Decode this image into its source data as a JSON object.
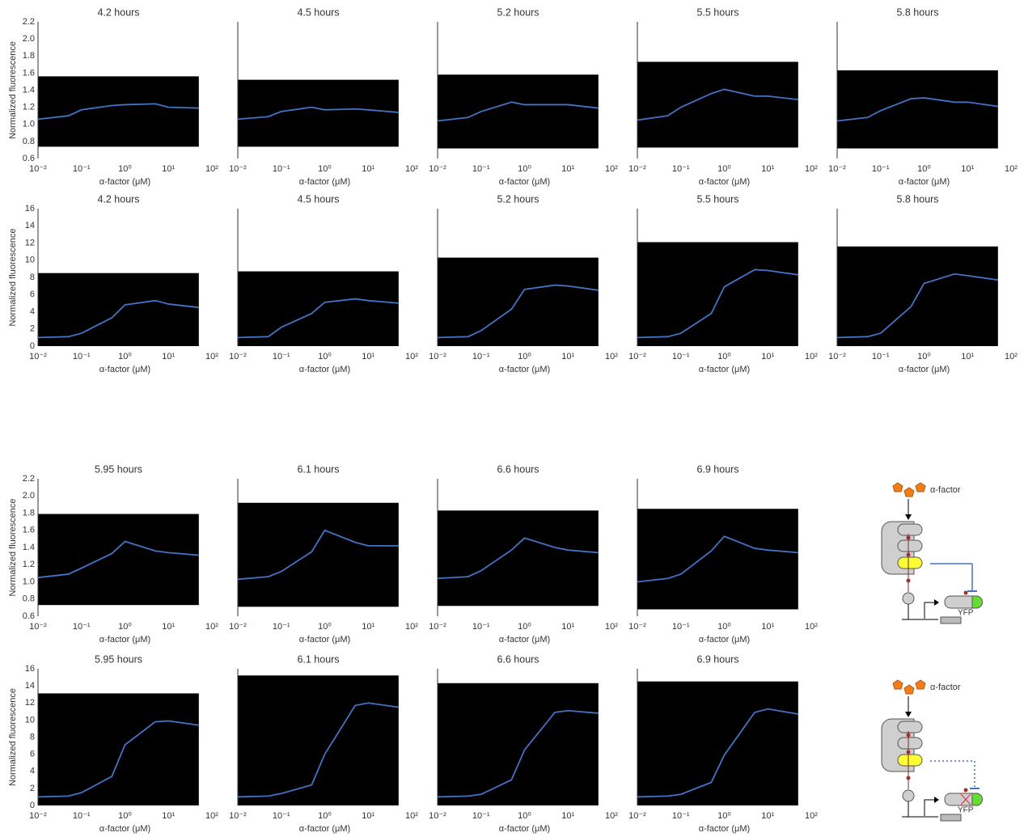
{
  "chart_data": [
    {
      "type": "line",
      "title": "4.2 hours",
      "ylabel": "Normalized fluorescence",
      "xlabel": "α-factor (μM)",
      "log_x": true,
      "x": [
        0.01,
        0.05,
        0.1,
        0.5,
        1,
        5,
        10,
        50
      ],
      "series": [
        {
          "color": "#4472c4",
          "values": [
            1.06,
            1.1,
            1.17,
            1.22,
            1.23,
            1.24,
            1.2,
            1.19
          ]
        }
      ],
      "xlim": [
        0.01,
        100
      ],
      "xticks": [
        {
          "value": 0.01,
          "label": "10⁻²"
        },
        {
          "value": 0.1,
          "label": "10⁻¹"
        },
        {
          "value": 1,
          "label": "10⁰"
        },
        {
          "value": 10,
          "label": "10¹"
        },
        {
          "value": 100,
          "label": "10²"
        }
      ],
      "ylim": [
        0.6,
        2.2
      ],
      "yticks": [
        0.6,
        0.8,
        {
          "value": 1,
          "label": "1.0"
        },
        1.2,
        1.4,
        1.6,
        1.8,
        {
          "value": 2,
          "label": "2.0"
        },
        2.2
      ]
    },
    {
      "type": "line",
      "title": "4.5 hours",
      "xlabel": "α-factor (μM)",
      "log_x": true,
      "x": [
        0.01,
        0.05,
        0.1,
        0.5,
        1,
        5,
        10,
        50
      ],
      "series": [
        {
          "color": "#4472c4",
          "values": [
            1.06,
            1.09,
            1.15,
            1.2,
            1.17,
            1.18,
            1.17,
            1.14
          ]
        }
      ],
      "xlim": [
        0.01,
        100
      ],
      "xticks": [
        {
          "value": 0.01,
          "label": "10⁻²"
        },
        {
          "value": 0.1,
          "label": "10⁻¹"
        },
        {
          "value": 1,
          "label": "10⁰"
        },
        {
          "value": 10,
          "label": "10¹"
        },
        {
          "value": 100,
          "label": "10²"
        }
      ],
      "ylim": [
        0.6,
        2.2
      ]
    },
    {
      "type": "line",
      "title": "5.2 hours",
      "xlabel": "α-factor (μM)",
      "log_x": true,
      "x": [
        0.01,
        0.05,
        0.1,
        0.5,
        1,
        5,
        10,
        50
      ],
      "series": [
        {
          "color": "#4472c4",
          "values": [
            1.04,
            1.08,
            1.15,
            1.26,
            1.23,
            1.23,
            1.23,
            1.19
          ]
        }
      ],
      "xlim": [
        0.01,
        100
      ],
      "xticks": [
        {
          "value": 0.01,
          "label": "10⁻²"
        },
        {
          "value": 0.1,
          "label": "10⁻¹"
        },
        {
          "value": 1,
          "label": "10⁰"
        },
        {
          "value": 10,
          "label": "10¹"
        },
        {
          "value": 100,
          "label": "10²"
        }
      ],
      "ylim": [
        0.6,
        2.2
      ]
    },
    {
      "type": "line",
      "title": "5.5 hours",
      "xlabel": "α-factor (μM)",
      "log_x": true,
      "x": [
        0.01,
        0.05,
        0.1,
        0.5,
        1,
        5,
        10,
        50
      ],
      "series": [
        {
          "color": "#4472c4",
          "values": [
            1.05,
            1.1,
            1.2,
            1.36,
            1.41,
            1.33,
            1.33,
            1.29
          ]
        }
      ],
      "xlim": [
        0.01,
        100
      ],
      "xticks": [
        {
          "value": 0.01,
          "label": "10⁻²"
        },
        {
          "value": 0.1,
          "label": "10⁻¹"
        },
        {
          "value": 1,
          "label": "10⁰"
        },
        {
          "value": 10,
          "label": "10¹"
        },
        {
          "value": 100,
          "label": "10²"
        }
      ],
      "ylim": [
        0.6,
        2.2
      ]
    },
    {
      "type": "line",
      "title": "5.8 hours",
      "xlabel": "α-factor (μM)",
      "log_x": true,
      "x": [
        0.01,
        0.05,
        0.1,
        0.5,
        1,
        5,
        10,
        50
      ],
      "series": [
        {
          "color": "#4472c4",
          "values": [
            1.04,
            1.08,
            1.16,
            1.3,
            1.31,
            1.26,
            1.26,
            1.21
          ]
        }
      ],
      "xlim": [
        0.01,
        100
      ],
      "xticks": [
        {
          "value": 0.01,
          "label": "10⁻²"
        },
        {
          "value": 0.1,
          "label": "10⁻¹"
        },
        {
          "value": 1,
          "label": "10⁰"
        },
        {
          "value": 10,
          "label": "10¹"
        },
        {
          "value": 100,
          "label": "10²"
        }
      ],
      "ylim": [
        0.6,
        2.2
      ]
    },
    {
      "type": "line",
      "title": "4.2 hours",
      "ylabel": "Normalized fluorescence",
      "xlabel": "α-factor (μM)",
      "log_x": true,
      "x": [
        0.01,
        0.05,
        0.1,
        0.5,
        1,
        5,
        10,
        50
      ],
      "series": [
        {
          "color": "#4472c4",
          "values": [
            1.0,
            1.1,
            1.5,
            3.3,
            4.8,
            5.3,
            4.9,
            4.5
          ]
        }
      ],
      "xlim": [
        0.01,
        100
      ],
      "xticks": [
        {
          "value": 0.01,
          "label": "10⁻²"
        },
        {
          "value": 0.1,
          "label": "10⁻¹"
        },
        {
          "value": 1,
          "label": "10⁰"
        },
        {
          "value": 10,
          "label": "10¹"
        },
        {
          "value": 100,
          "label": "10²"
        }
      ],
      "ylim": [
        0,
        16
      ],
      "yticks": [
        0,
        2,
        4,
        6,
        8,
        10,
        12,
        14,
        16
      ]
    },
    {
      "type": "line",
      "title": "4.5 hours",
      "xlabel": "α-factor (μM)",
      "log_x": true,
      "x": [
        0.01,
        0.05,
        0.1,
        0.5,
        1,
        5,
        10,
        50
      ],
      "series": [
        {
          "color": "#4472c4",
          "values": [
            1.0,
            1.1,
            2.2,
            3.8,
            5.1,
            5.5,
            5.3,
            5.0
          ]
        }
      ],
      "xlim": [
        0.01,
        100
      ],
      "xticks": [
        {
          "value": 0.01,
          "label": "10⁻²"
        },
        {
          "value": 0.1,
          "label": "10⁻¹"
        },
        {
          "value": 1,
          "label": "10⁰"
        },
        {
          "value": 10,
          "label": "10¹"
        },
        {
          "value": 100,
          "label": "10²"
        }
      ],
      "ylim": [
        0,
        16
      ]
    },
    {
      "type": "line",
      "title": "5.2 hours",
      "xlabel": "α-factor (μM)",
      "log_x": true,
      "x": [
        0.01,
        0.05,
        0.1,
        0.5,
        1,
        5,
        10,
        50
      ],
      "series": [
        {
          "color": "#4472c4",
          "values": [
            1.0,
            1.1,
            1.8,
            4.3,
            6.6,
            7.1,
            7.0,
            6.5
          ]
        }
      ],
      "xlim": [
        0.01,
        100
      ],
      "xticks": [
        {
          "value": 0.01,
          "label": "10⁻²"
        },
        {
          "value": 0.1,
          "label": "10⁻¹"
        },
        {
          "value": 1,
          "label": "10⁰"
        },
        {
          "value": 10,
          "label": "10¹"
        },
        {
          "value": 100,
          "label": "10²"
        }
      ],
      "ylim": [
        0,
        16
      ]
    },
    {
      "type": "line",
      "title": "5.5 hours",
      "xlabel": "α-factor (μM)",
      "log_x": true,
      "x": [
        0.01,
        0.05,
        0.1,
        0.5,
        1,
        5,
        10,
        50
      ],
      "series": [
        {
          "color": "#4472c4",
          "values": [
            1.0,
            1.1,
            1.5,
            3.8,
            6.9,
            8.9,
            8.8,
            8.3
          ]
        }
      ],
      "xlim": [
        0.01,
        100
      ],
      "xticks": [
        {
          "value": 0.01,
          "label": "10⁻²"
        },
        {
          "value": 0.1,
          "label": "10⁻¹"
        },
        {
          "value": 1,
          "label": "10⁰"
        },
        {
          "value": 10,
          "label": "10¹"
        },
        {
          "value": 100,
          "label": "10²"
        }
      ],
      "ylim": [
        0,
        16
      ]
    },
    {
      "type": "line",
      "title": "5.8 hours",
      "xlabel": "α-factor (μM)",
      "log_x": true,
      "x": [
        0.01,
        0.05,
        0.1,
        0.5,
        1,
        5,
        10,
        50
      ],
      "series": [
        {
          "color": "#4472c4",
          "values": [
            1.0,
            1.1,
            1.5,
            4.6,
            7.3,
            8.4,
            8.2,
            7.7
          ]
        }
      ],
      "xlim": [
        0.01,
        100
      ],
      "xticks": [
        {
          "value": 0.01,
          "label": "10⁻²"
        },
        {
          "value": 0.1,
          "label": "10⁻¹"
        },
        {
          "value": 1,
          "label": "10⁰"
        },
        {
          "value": 10,
          "label": "10¹"
        },
        {
          "value": 100,
          "label": "10²"
        }
      ],
      "ylim": [
        0,
        16
      ]
    },
    {
      "type": "line",
      "title": "5.95 hours",
      "ylabel": "Normalized fluorescence",
      "xlabel": "α-factor (μM)",
      "log_x": true,
      "x": [
        0.01,
        0.05,
        0.1,
        0.5,
        1,
        5,
        10,
        50
      ],
      "series": [
        {
          "color": "#4472c4",
          "values": [
            1.05,
            1.09,
            1.16,
            1.33,
            1.47,
            1.36,
            1.34,
            1.31
          ]
        }
      ],
      "xlim": [
        0.01,
        100
      ],
      "xticks": [
        {
          "value": 0.01,
          "label": "10⁻²"
        },
        {
          "value": 0.1,
          "label": "10⁻¹"
        },
        {
          "value": 1,
          "label": "10⁰"
        },
        {
          "value": 10,
          "label": "10¹"
        },
        {
          "value": 100,
          "label": "10²"
        }
      ],
      "ylim": [
        0.6,
        2.2
      ],
      "yticks": [
        0.6,
        0.8,
        {
          "value": 1,
          "label": "1.0"
        },
        1.2,
        1.4,
        1.6,
        1.8,
        {
          "value": 2,
          "label": "2.0"
        },
        2.2
      ]
    },
    {
      "type": "line",
      "title": "6.1 hours",
      "xlabel": "α-factor (μM)",
      "log_x": true,
      "x": [
        0.01,
        0.05,
        0.1,
        0.5,
        1,
        5,
        10,
        50
      ],
      "series": [
        {
          "color": "#4472c4",
          "values": [
            1.03,
            1.06,
            1.12,
            1.35,
            1.6,
            1.46,
            1.42,
            1.42
          ]
        }
      ],
      "xlim": [
        0.01,
        100
      ],
      "xticks": [
        {
          "value": 0.01,
          "label": "10⁻²"
        },
        {
          "value": 0.1,
          "label": "10⁻¹"
        },
        {
          "value": 1,
          "label": "10⁰"
        },
        {
          "value": 10,
          "label": "10¹"
        },
        {
          "value": 100,
          "label": "10²"
        }
      ],
      "ylim": [
        0.6,
        2.2
      ]
    },
    {
      "type": "line",
      "title": "6.6 hours",
      "xlabel": "α-factor (μM)",
      "log_x": true,
      "x": [
        0.01,
        0.05,
        0.1,
        0.5,
        1,
        5,
        10,
        50
      ],
      "series": [
        {
          "color": "#4472c4",
          "values": [
            1.04,
            1.06,
            1.13,
            1.37,
            1.51,
            1.4,
            1.37,
            1.34
          ]
        }
      ],
      "xlim": [
        0.01,
        100
      ],
      "xticks": [
        {
          "value": 0.01,
          "label": "10⁻²"
        },
        {
          "value": 0.1,
          "label": "10⁻¹"
        },
        {
          "value": 1,
          "label": "10⁰"
        },
        {
          "value": 10,
          "label": "10¹"
        },
        {
          "value": 100,
          "label": "10²"
        }
      ],
      "ylim": [
        0.6,
        2.2
      ]
    },
    {
      "type": "line",
      "title": "6.9 hours",
      "xlabel": "α-factor (μM)",
      "log_x": true,
      "x": [
        0.01,
        0.05,
        0.1,
        0.5,
        1,
        5,
        10,
        50
      ],
      "series": [
        {
          "color": "#4472c4",
          "values": [
            1.0,
            1.04,
            1.09,
            1.36,
            1.53,
            1.39,
            1.37,
            1.34
          ]
        }
      ],
      "xlim": [
        0.01,
        100
      ],
      "xticks": [
        {
          "value": 0.01,
          "label": "10⁻²"
        },
        {
          "value": 0.1,
          "label": "10⁻¹"
        },
        {
          "value": 1,
          "label": "10⁰"
        },
        {
          "value": 10,
          "label": "10¹"
        },
        {
          "value": 100,
          "label": "10²"
        }
      ],
      "ylim": [
        0.6,
        2.2
      ]
    },
    {
      "type": "line",
      "title": "5.95 hours",
      "ylabel": "Normalized fluorescence",
      "xlabel": "α-factor (μM)",
      "log_x": true,
      "x": [
        0.01,
        0.05,
        0.1,
        0.5,
        1,
        5,
        10,
        50
      ],
      "series": [
        {
          "color": "#4472c4",
          "values": [
            1.0,
            1.1,
            1.5,
            3.4,
            7.1,
            9.8,
            9.9,
            9.4
          ]
        }
      ],
      "xlim": [
        0.01,
        100
      ],
      "xticks": [
        {
          "value": 0.01,
          "label": "10⁻²"
        },
        {
          "value": 0.1,
          "label": "10⁻¹"
        },
        {
          "value": 1,
          "label": "10⁰"
        },
        {
          "value": 10,
          "label": "10¹"
        },
        {
          "value": 100,
          "label": "10²"
        }
      ],
      "ylim": [
        0,
        16
      ],
      "yticks": [
        0,
        2,
        4,
        6,
        8,
        10,
        12,
        14,
        16
      ]
    },
    {
      "type": "line",
      "title": "6.1 hours",
      "xlabel": "α-factor (μM)",
      "log_x": true,
      "x": [
        0.01,
        0.05,
        0.1,
        0.5,
        1,
        5,
        10,
        50
      ],
      "series": [
        {
          "color": "#4472c4",
          "values": [
            1.0,
            1.1,
            1.4,
            2.4,
            6.0,
            11.7,
            12.0,
            11.5
          ]
        }
      ],
      "xlim": [
        0.01,
        100
      ],
      "xticks": [
        {
          "value": 0.01,
          "label": "10⁻²"
        },
        {
          "value": 0.1,
          "label": "10⁻¹"
        },
        {
          "value": 1,
          "label": "10⁰"
        },
        {
          "value": 10,
          "label": "10¹"
        },
        {
          "value": 100,
          "label": "10²"
        }
      ],
      "ylim": [
        0,
        16
      ]
    },
    {
      "type": "line",
      "title": "6.6 hours",
      "xlabel": "α-factor (μM)",
      "log_x": true,
      "x": [
        0.01,
        0.05,
        0.1,
        0.5,
        1,
        5,
        10,
        50
      ],
      "series": [
        {
          "color": "#4472c4",
          "values": [
            1.0,
            1.1,
            1.3,
            3.0,
            6.5,
            10.9,
            11.1,
            10.8
          ]
        }
      ],
      "xlim": [
        0.01,
        100
      ],
      "xticks": [
        {
          "value": 0.01,
          "label": "10⁻²"
        },
        {
          "value": 0.1,
          "label": "10⁻¹"
        },
        {
          "value": 1,
          "label": "10⁰"
        },
        {
          "value": 10,
          "label": "10¹"
        },
        {
          "value": 100,
          "label": "10²"
        }
      ],
      "ylim": [
        0,
        16
      ]
    },
    {
      "type": "line",
      "title": "6.9 hours",
      "xlabel": "α-factor (μM)",
      "log_x": true,
      "x": [
        0.01,
        0.05,
        0.1,
        0.5,
        1,
        5,
        10,
        50
      ],
      "series": [
        {
          "color": "#4472c4",
          "values": [
            1.0,
            1.1,
            1.3,
            2.7,
            5.9,
            10.9,
            11.3,
            10.7
          ]
        }
      ],
      "xlim": [
        0.01,
        100
      ],
      "xticks": [
        {
          "value": 0.01,
          "label": "10⁻²"
        },
        {
          "value": 0.1,
          "label": "10⁻¹"
        },
        {
          "value": 1,
          "label": "10⁰"
        },
        {
          "value": 10,
          "label": "10¹"
        },
        {
          "value": 100,
          "label": "10²"
        }
      ],
      "ylim": [
        0,
        16
      ]
    }
  ],
  "diagrams": [
    {
      "ligand": "α-factor",
      "reporter": "YFP"
    },
    {
      "ligand": "α-factor",
      "reporter": "YFP"
    }
  ]
}
